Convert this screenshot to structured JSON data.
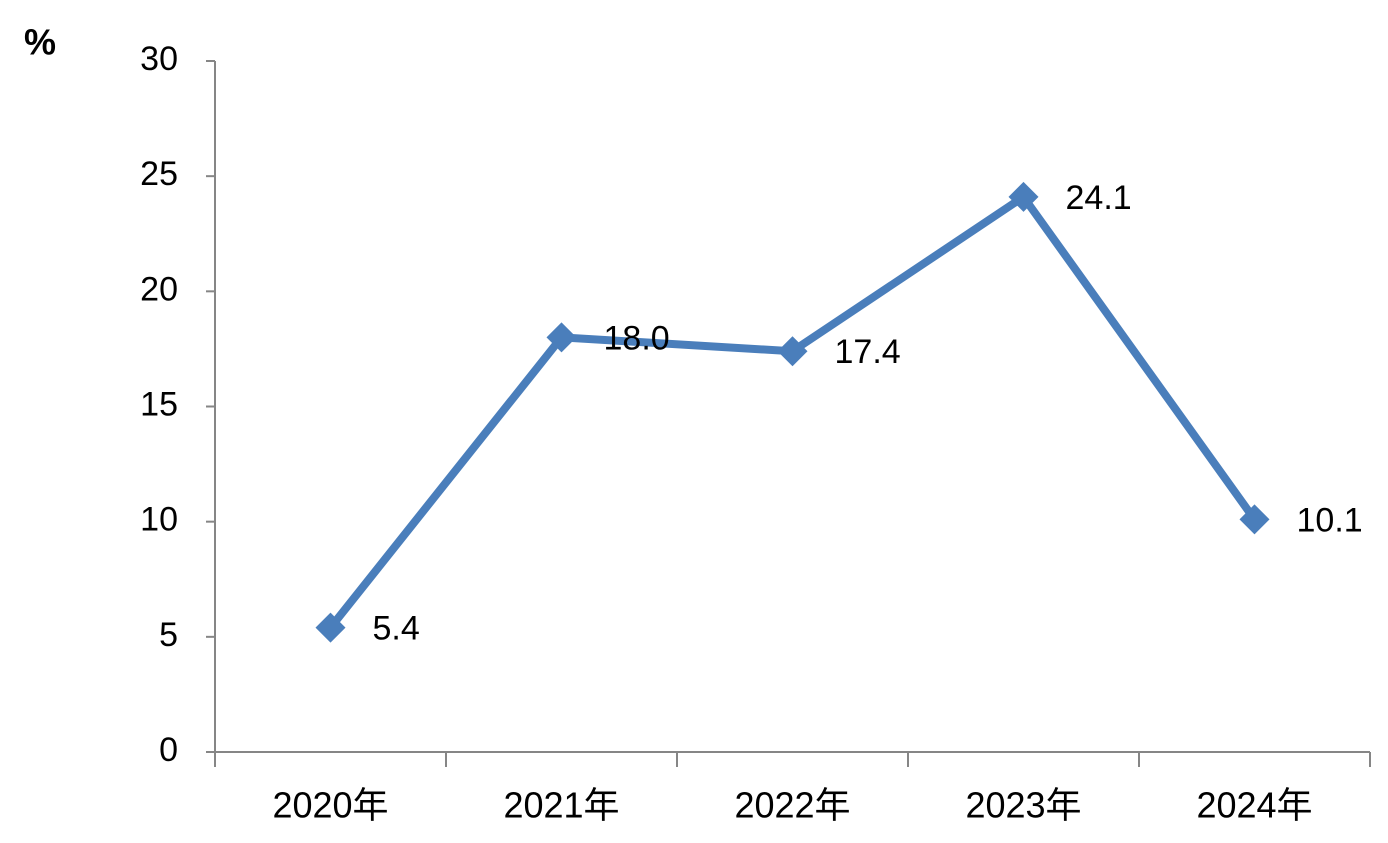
{
  "chart_data": {
    "type": "line",
    "y_label": "%",
    "categories": [
      "2020年",
      "2021年",
      "2022年",
      "2023年",
      "2024年"
    ],
    "values": [
      5.4,
      18.0,
      17.4,
      24.1,
      10.1
    ],
    "value_labels": [
      "5.4",
      "18.0",
      "17.4",
      "24.1",
      "10.1"
    ],
    "color": "#4a7ebb",
    "ylim": [
      0,
      30
    ],
    "yticks": [
      0,
      5,
      10,
      15,
      20,
      25,
      30
    ]
  }
}
